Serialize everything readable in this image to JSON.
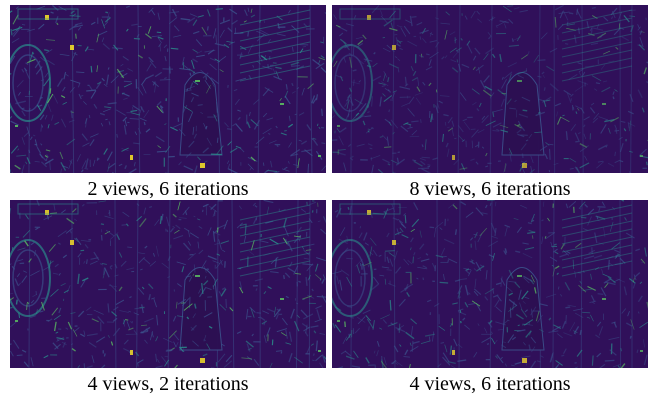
{
  "figure": {
    "panels": [
      {
        "caption": "2 views, 6 iterations",
        "colormap": "viridis",
        "intensity": 1.0
      },
      {
        "caption": "8 views, 6 iterations",
        "colormap": "viridis",
        "intensity": 0.75
      },
      {
        "caption": "4 views, 2 iterations",
        "colormap": "viridis",
        "intensity": 0.95
      },
      {
        "caption": "4 views, 6 iterations",
        "colormap": "viridis",
        "intensity": 0.85
      }
    ],
    "colors": {
      "background": "#30105a",
      "edge_dim": "#3b4f8a",
      "edge_mid": "#2a8f8c",
      "edge_bright": "#5ec962",
      "edge_peak": "#fde725"
    }
  }
}
